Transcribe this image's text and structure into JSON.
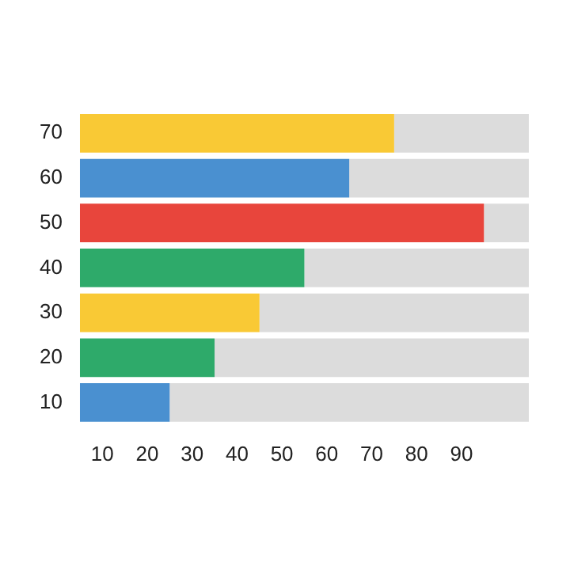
{
  "chart_data": {
    "type": "bar",
    "orientation": "horizontal",
    "categories": [
      "70",
      "60",
      "50",
      "40",
      "30",
      "20",
      "10"
    ],
    "series": [
      {
        "colors": [
          "#f9c935",
          "#4a90d0",
          "#e8453c",
          "#2eaa6a",
          "#f9c935",
          "#2eaa6a",
          "#4a90d0"
        ],
        "base": [
          5,
          5,
          5,
          5,
          5,
          5,
          5
        ],
        "values": [
          70,
          60,
          90,
          50,
          40,
          30,
          20
        ]
      },
      {
        "color": "#dcdcdc",
        "base": [
          75,
          65,
          95,
          55,
          45,
          35,
          25
        ],
        "values": [
          30,
          40,
          10,
          50,
          60,
          70,
          80
        ]
      }
    ],
    "xlim": [
      5,
      105
    ],
    "xticks": [
      10,
      20,
      30,
      40,
      50,
      60,
      70,
      80,
      90
    ]
  }
}
